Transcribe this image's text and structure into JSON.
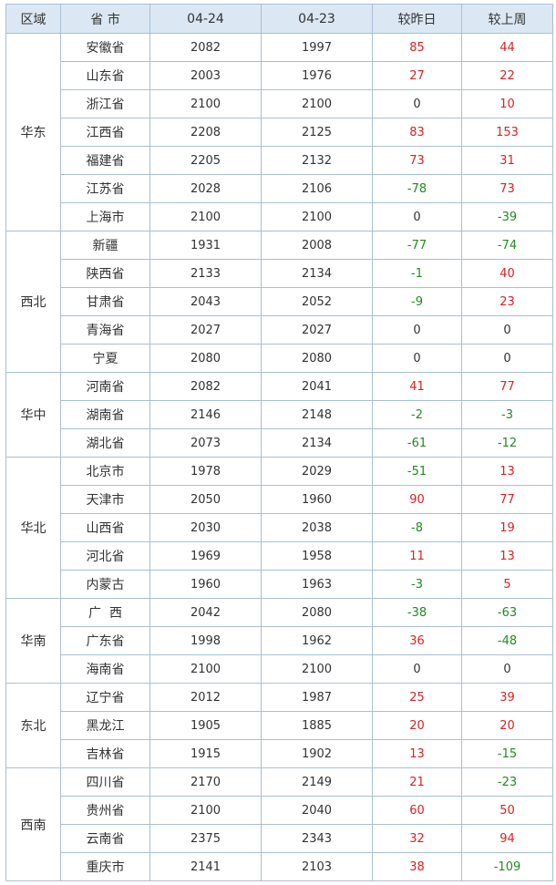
{
  "table": {
    "header": [
      "区域",
      "省 市",
      "04-24",
      "04-23",
      "较昨日",
      "较上周"
    ],
    "groups": [
      {
        "region": "华东",
        "rows": [
          [
            "安徽省",
            2082,
            1997,
            85,
            44
          ],
          [
            "山东省",
            2003,
            1976,
            27,
            22
          ],
          [
            "浙江省",
            2100,
            2100,
            0,
            10
          ],
          [
            "江西省",
            2208,
            2125,
            83,
            153
          ],
          [
            "福建省",
            2205,
            2132,
            73,
            31
          ],
          [
            "江苏省",
            2028,
            2106,
            -78,
            73
          ],
          [
            "上海市",
            2100,
            2100,
            0,
            -39
          ]
        ]
      },
      {
        "region": "西北",
        "rows": [
          [
            "新疆",
            1931,
            2008,
            -77,
            -74
          ],
          [
            "陕西省",
            2133,
            2134,
            -1,
            40
          ],
          [
            "甘肃省",
            2043,
            2052,
            -9,
            23
          ],
          [
            "青海省",
            2027,
            2027,
            0,
            0
          ],
          [
            "宁夏",
            2080,
            2080,
            0,
            0
          ]
        ]
      },
      {
        "region": "华中",
        "rows": [
          [
            "河南省",
            2082,
            2041,
            41,
            77
          ],
          [
            "湖南省",
            2146,
            2148,
            -2,
            -3
          ],
          [
            "湖北省",
            2073,
            2134,
            -61,
            -12
          ]
        ]
      },
      {
        "region": "华北",
        "rows": [
          [
            "北京市",
            1978,
            2029,
            -51,
            13
          ],
          [
            "天津市",
            2050,
            1960,
            90,
            77
          ],
          [
            "山西省",
            2030,
            2038,
            -8,
            19
          ],
          [
            "河北省",
            1969,
            1958,
            11,
            13
          ],
          [
            "内蒙古",
            1960,
            1963,
            -3,
            5
          ]
        ]
      },
      {
        "region": "华南",
        "rows": [
          [
            "广  西",
            2042,
            2080,
            -38,
            -63
          ],
          [
            "广东省",
            1998,
            1962,
            36,
            -48
          ],
          [
            "海南省",
            2100,
            2100,
            0,
            0
          ]
        ]
      },
      {
        "region": "东北",
        "rows": [
          [
            "辽宁省",
            2012,
            1987,
            25,
            39
          ],
          [
            "黑龙江",
            1905,
            1885,
            20,
            20
          ],
          [
            "吉林省",
            1915,
            1902,
            13,
            -15
          ]
        ]
      },
      {
        "region": "西南",
        "rows": [
          [
            "四川省",
            2170,
            2149,
            21,
            -23
          ],
          [
            "贵州省",
            2100,
            2040,
            60,
            50
          ],
          [
            "云南省",
            2375,
            2343,
            32,
            94
          ],
          [
            "重庆市",
            2141,
            2103,
            38,
            -109
          ]
        ]
      }
    ]
  }
}
